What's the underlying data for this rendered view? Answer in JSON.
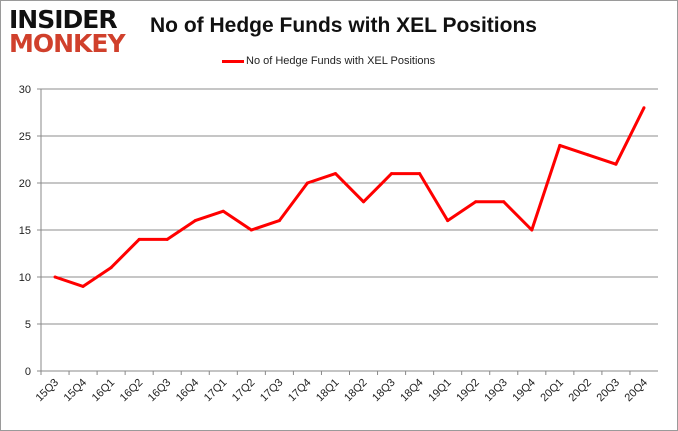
{
  "logo": {
    "line1": "INSIDER",
    "line2": "MONKEY"
  },
  "chart_data": {
    "type": "line",
    "title": "No of Hedge Funds with XEL Positions",
    "xlabel": "",
    "ylabel": "",
    "categories": [
      "15Q3",
      "15Q4",
      "16Q1",
      "16Q2",
      "16Q3",
      "16Q4",
      "17Q1",
      "17Q2",
      "17Q3",
      "17Q4",
      "18Q1",
      "18Q2",
      "18Q3",
      "18Q4",
      "19Q1",
      "19Q2",
      "19Q3",
      "19Q4",
      "20Q1",
      "20Q2",
      "20Q3",
      "20Q4"
    ],
    "series": [
      {
        "name": "No of Hedge Funds with XEL Positions",
        "color": "#ff0000",
        "values": [
          10,
          9,
          11,
          14,
          14,
          16,
          17,
          15,
          16,
          20,
          21,
          18,
          21,
          21,
          16,
          18,
          18,
          15,
          24,
          23,
          22,
          28
        ]
      }
    ],
    "ylim": [
      0,
      30
    ],
    "yticks": [
      0,
      5,
      10,
      15,
      20,
      25,
      30
    ],
    "grid": true,
    "legend": "top"
  }
}
